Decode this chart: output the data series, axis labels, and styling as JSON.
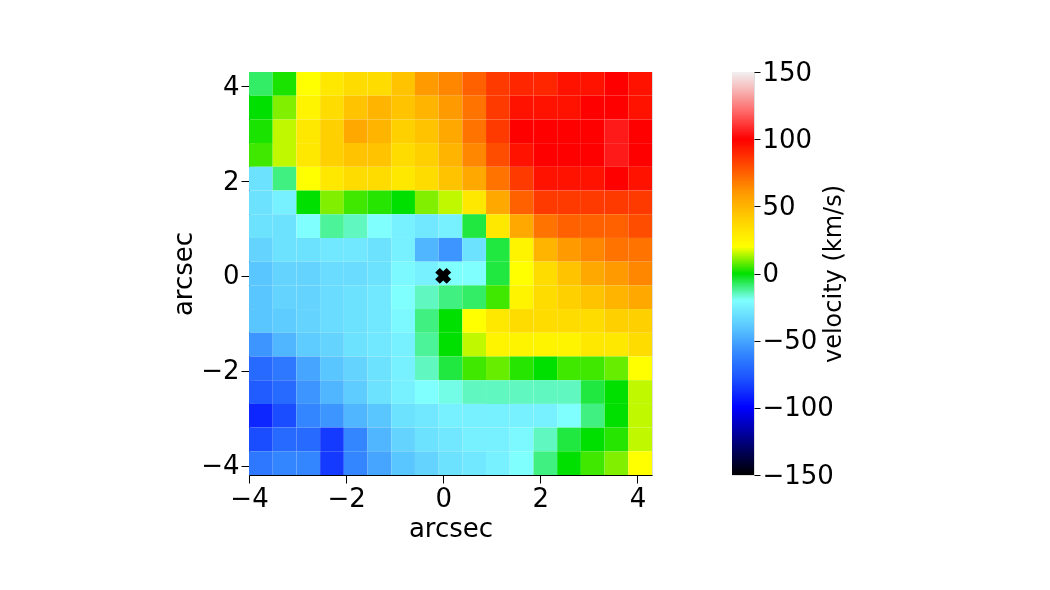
{
  "chart_data": {
    "type": "heatmap",
    "xlabel": "arcsec",
    "ylabel": "arcsec",
    "clabel": "velocity (km/s)",
    "xlim": [
      -4.0,
      4.3
    ],
    "ylim": [
      -4.2,
      4.3
    ],
    "xticks": [
      -4,
      -2,
      0,
      2,
      4
    ],
    "yticks": [
      -4,
      -2,
      0,
      2,
      4
    ],
    "clim": [
      -150,
      150
    ],
    "cticks": [
      -150,
      -100,
      -50,
      0,
      50,
      100,
      150
    ],
    "colors": [
      "#000000",
      "#000033",
      "#000066",
      "#000099",
      "#0000cc",
      "#0000ff",
      "#0d26ff",
      "#1a4dff",
      "#266aff",
      "#3386ff",
      "#46a6ff",
      "#5ac6ff",
      "#6de2ff",
      "#80ffff",
      "#40f080",
      "#00e000",
      "#80f000",
      "#ffff00",
      "#ffe800",
      "#ffd000",
      "#ffb500",
      "#ff9a00",
      "#ff7400",
      "#ff4d00",
      "#ff2600",
      "#ff0000",
      "#ff3333",
      "#ff6666",
      "#fa9696",
      "#f6c6c6",
      "#f0f0f0"
    ],
    "x": [
      -3.756,
      -3.268,
      -2.779,
      -2.291,
      -1.803,
      -1.315,
      -0.826,
      -0.338,
      0.15,
      0.638,
      1.126,
      1.615,
      2.103,
      2.591,
      3.079,
      3.568,
      4.056
    ],
    "cells": [
      [
        -8,
        2,
        20,
        30,
        35,
        35,
        45,
        60,
        65,
        75,
        85,
        90,
        90,
        95,
        95,
        100,
        95
      ],
      [
        0,
        10,
        25,
        35,
        45,
        50,
        45,
        50,
        60,
        70,
        85,
        95,
        95,
        95,
        100,
        100,
        95
      ],
      [
        2,
        15,
        30,
        40,
        55,
        50,
        40,
        45,
        55,
        70,
        85,
        100,
        100,
        100,
        100,
        105,
        100
      ],
      [
        5,
        15,
        30,
        40,
        45,
        45,
        35,
        40,
        50,
        65,
        80,
        95,
        100,
        100,
        100,
        105,
        100
      ],
      [
        -30,
        -10,
        20,
        30,
        35,
        35,
        30,
        35,
        45,
        55,
        70,
        85,
        95,
        95,
        95,
        100,
        95
      ],
      [
        -30,
        -25,
        0,
        10,
        5,
        3,
        0,
        10,
        15,
        30,
        55,
        75,
        85,
        85,
        85,
        85,
        85
      ],
      [
        -30,
        -30,
        -20,
        -12,
        -15,
        -20,
        -25,
        -28,
        -25,
        -5,
        30,
        55,
        70,
        75,
        75,
        75,
        80
      ],
      [
        -35,
        -30,
        -30,
        -28,
        -28,
        -30,
        -25,
        -45,
        -55,
        -30,
        -5,
        25,
        50,
        60,
        65,
        70,
        70
      ],
      [
        -40,
        -35,
        -35,
        -32,
        -32,
        -30,
        -22,
        -25,
        -20,
        -20,
        -5,
        20,
        35,
        45,
        55,
        60,
        65
      ],
      [
        -40,
        -35,
        -35,
        -32,
        -30,
        -28,
        -20,
        -15,
        -10,
        -8,
        5,
        25,
        35,
        40,
        45,
        50,
        55
      ],
      [
        -40,
        -38,
        -35,
        -32,
        -30,
        -28,
        -22,
        -10,
        0,
        20,
        30,
        35,
        35,
        35,
        35,
        40,
        40
      ],
      [
        -55,
        -45,
        -38,
        -35,
        -30,
        -28,
        -25,
        -12,
        0,
        15,
        25,
        25,
        25,
        25,
        30,
        30,
        35
      ],
      [
        -70,
        -65,
        -50,
        -40,
        -35,
        -30,
        -25,
        -15,
        -5,
        5,
        8,
        3,
        0,
        5,
        5,
        8,
        20
      ],
      [
        -75,
        -70,
        -55,
        -45,
        -38,
        -30,
        -25,
        -20,
        -18,
        -15,
        -15,
        -15,
        -15,
        -15,
        -5,
        0,
        15
      ],
      [
        -90,
        -80,
        -60,
        -55,
        -45,
        -40,
        -30,
        -28,
        -25,
        -25,
        -25,
        -25,
        -25,
        -20,
        -10,
        0,
        15
      ],
      [
        -80,
        -70,
        -70,
        -85,
        -60,
        -45,
        -35,
        -30,
        -28,
        -25,
        -25,
        -22,
        -15,
        -5,
        0,
        3,
        15
      ],
      [
        -65,
        -60,
        -60,
        -85,
        -60,
        -50,
        -40,
        -35,
        -30,
        -28,
        -25,
        -20,
        -10,
        0,
        5,
        10,
        20
      ]
    ],
    "series": [
      {
        "type": "scatter",
        "x": [
          0
        ],
        "values": [
          0
        ],
        "color": "#000000"
      }
    ],
    "marker": "cross",
    "grid": false
  }
}
